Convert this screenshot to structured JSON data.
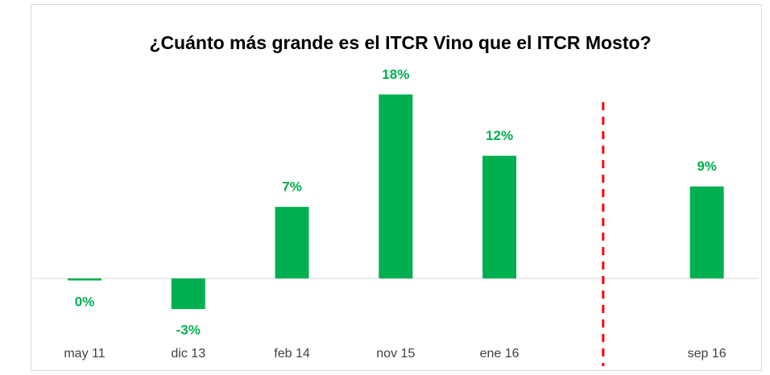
{
  "chart_data": {
    "type": "bar",
    "title": "¿Cuánto más grande es el ITCR Vino que el ITCR Mosto?",
    "categories": [
      "may 11",
      "dic 13",
      "feb 14",
      "nov 15",
      "ene 16",
      null,
      "sep 16"
    ],
    "values": [
      -0.2,
      -3,
      7,
      18,
      12,
      null,
      9
    ],
    "value_labels": [
      "0%",
      "-3%",
      "7%",
      "18%",
      "12%",
      null,
      "9%"
    ],
    "color": "#00b050",
    "ylim": [
      -8,
      21
    ]
  }
}
